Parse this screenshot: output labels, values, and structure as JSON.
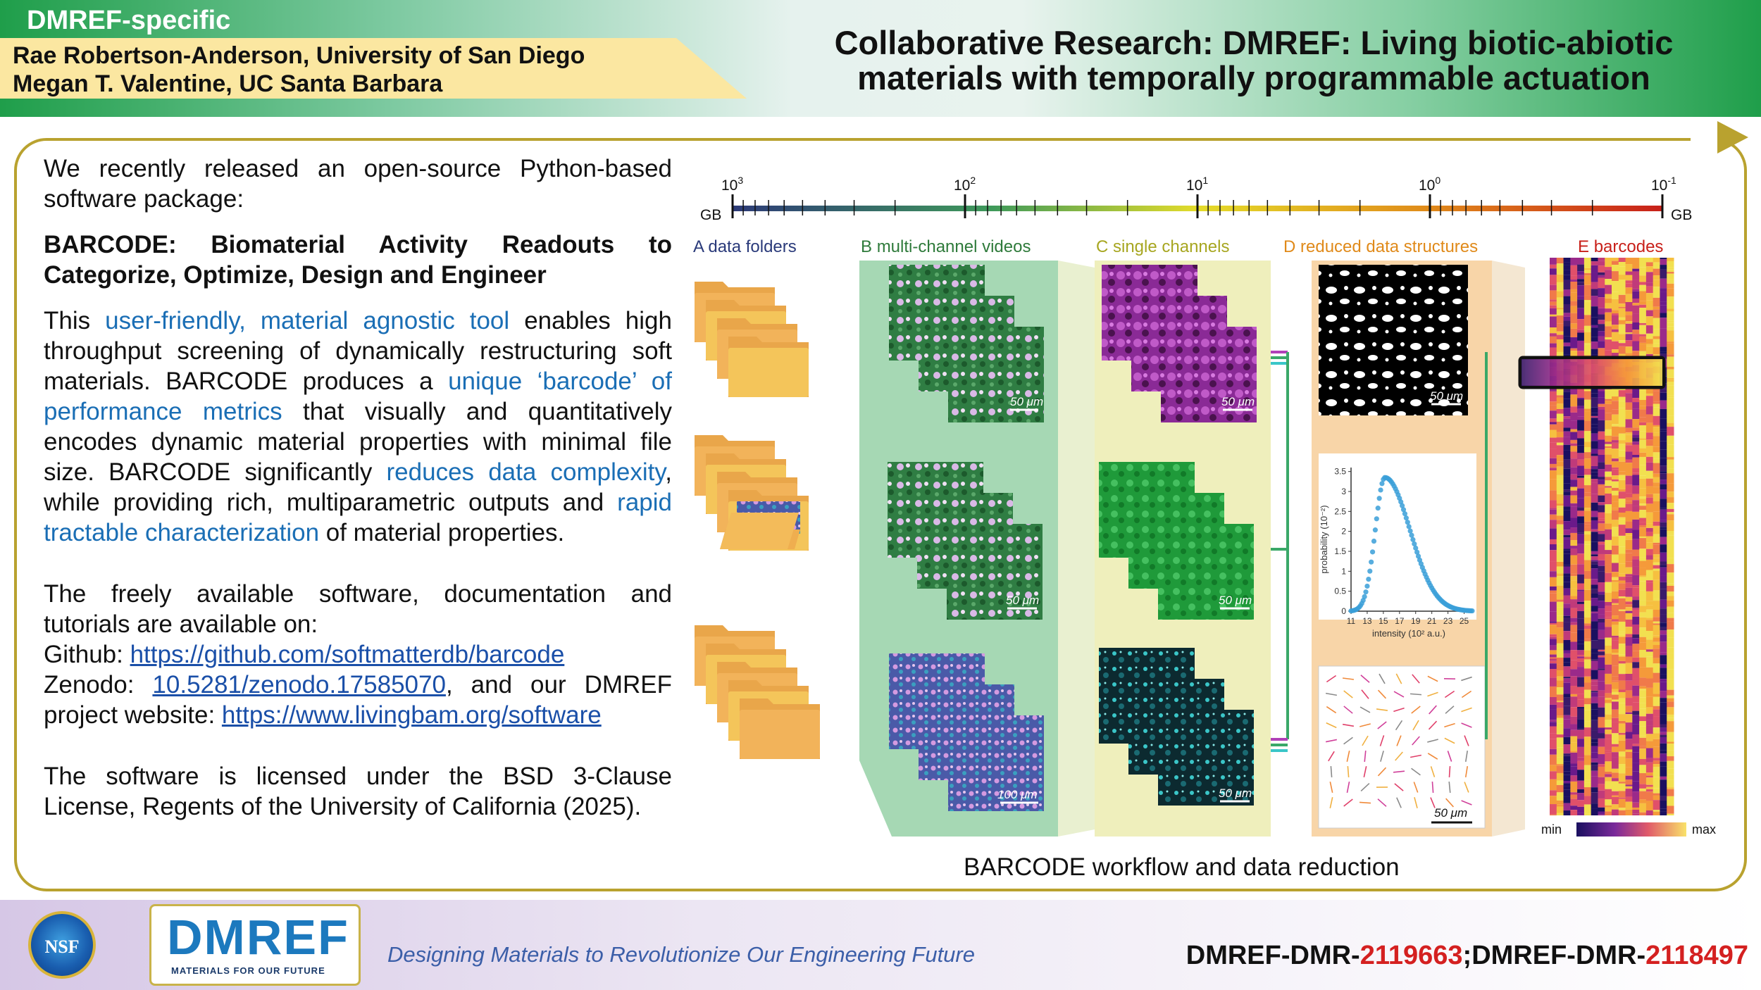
{
  "header": {
    "tag": "DMREF-specific",
    "pi_1": "Rae Robertson-Anderson, University of San Diego",
    "pi_2": "Megan T. Valentine, UC Santa Barbara",
    "title": "Collaborative Research: DMREF: Living biotic-abiotic materials with temporally programmable actuation"
  },
  "text": {
    "p1": "We recently released an open-source Python-based software package:",
    "p2": "BARCODE: Biomaterial Activity Readouts to Categorize, Optimize, Design and Engineer",
    "p3_a": "This ",
    "p3_b": "user-friendly, material agnostic tool",
    "p3_c": " enables high throughput screening of dynamically restructuring soft materials. BARCODE produces a ",
    "p3_d": "unique ‘barcode’ of performance metrics",
    "p3_e": " that visually and quantitatively encodes dynamic material properties with minimal file size. BARCODE significantly ",
    "p3_f": "reduces data complexity",
    "p3_g": ", while providing rich, multiparametric outputs and ",
    "p3_h": "rapid tractable characterization",
    "p3_i": " of material properties.",
    "p4": "The freely available software, documentation and tutorials are available on:",
    "github_label": "Github: ",
    "github_url": "https://github.com/softmatterdb/barcode",
    "zenodo_label": "Zenodo: ",
    "zenodo_doi": "10.5281/zenodo.17585070",
    "zenodo_tail": ", and our DMREF project website: ",
    "website_url": "https://www.livingbam.org/software",
    "p5": "The software is licensed under the BSD 3-Clause License, Regents of the University of California (2025)."
  },
  "figure": {
    "caption": "BARCODE workflow and data reduction",
    "scale": {
      "unit": "GB",
      "ticks": [
        {
          "base": "10",
          "exp": "3",
          "value": 1000
        },
        {
          "base": "10",
          "exp": "2",
          "value": 100
        },
        {
          "base": "10",
          "exp": "1",
          "value": 10
        },
        {
          "base": "10",
          "exp": "0",
          "value": 1
        },
        {
          "base": "10",
          "exp": "-1",
          "value": 0.1
        }
      ]
    },
    "panels": [
      {
        "letter": "A",
        "label": "data folders",
        "color": "#2a3a7a"
      },
      {
        "letter": "B",
        "label": "multi-channel videos",
        "color": "#2e7a3a"
      },
      {
        "letter": "C",
        "label": "single channels",
        "color": "#a7a620"
      },
      {
        "letter": "D",
        "label": "reduced data structures",
        "color": "#e08a1a"
      },
      {
        "letter": "E",
        "label": "barcodes",
        "color": "#c8201a"
      }
    ],
    "scalebars": {
      "b1": "50 μm",
      "b2": "50 μm",
      "b3": "100 μm",
      "c1": "50 μm",
      "c2": "50 μm",
      "c3": "50 μm",
      "d1": "50 μm",
      "d3": "50 μm"
    },
    "histogram": {
      "xlabel": "intensity (10² a.u.)",
      "ylabel": "probability (10⁻²)",
      "x_ticks": [
        "11",
        "13",
        "15",
        "17",
        "19",
        "21",
        "23",
        "25"
      ],
      "y_ticks": [
        "0",
        "0.5",
        "1",
        "1.5",
        "2",
        "2.5",
        "3",
        "3.5"
      ],
      "x_range": [
        11,
        26
      ],
      "y_range": [
        0,
        3.6
      ]
    },
    "colorbar": {
      "min": "min",
      "max": "max"
    }
  },
  "footer": {
    "nsf": "NSF",
    "dmref": "DMREF",
    "dmref_sub": "MATERIALS FOR OUR FUTURE",
    "slogan": "Designing Materials to Revolutionize Our Engineering Future",
    "award_1_prefix": "DMREF-DMR-",
    "award_1_num": "2119663",
    "award_sep": ";",
    "award_2_prefix": "DMREF-DMR-",
    "award_2_num": "2118497"
  }
}
